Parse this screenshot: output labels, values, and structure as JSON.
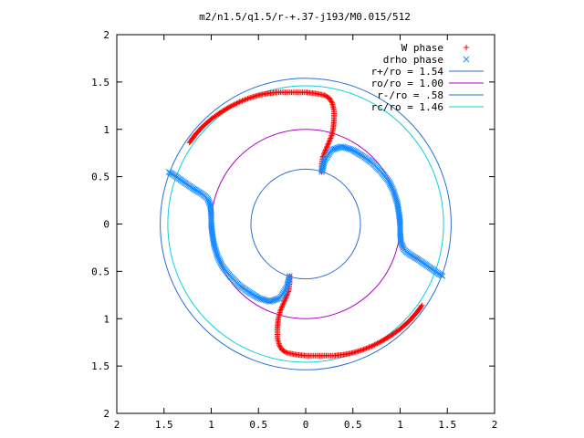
{
  "chart_data": {
    "type": "scatter",
    "title": "m2/n1.5/q1.5/r-+.37-j193/M0.015/512",
    "xlabel": "",
    "ylabel": "",
    "xlim": [
      -2,
      2
    ],
    "ylim": [
      -2,
      2
    ],
    "x_tick_labels": [
      "2",
      "1.5",
      "1",
      "0.5",
      "0",
      "0.5",
      "1",
      "1.5",
      "2"
    ],
    "y_tick_labels": [
      "2",
      "1.5",
      "1",
      "0.5",
      "0",
      "0.5",
      "1",
      "1.5",
      "2"
    ],
    "grid": false,
    "legend_position": "top-right",
    "circles": [
      {
        "label": "r+/ro = 1.54",
        "radius": 1.54,
        "color": "#2a6fd6"
      },
      {
        "label": "ro/ro = 1.00",
        "radius": 1.0,
        "color": "#b000c8"
      },
      {
        "label": "r-/ro = .58",
        "radius": 0.58,
        "color": "#2a6fd6"
      },
      {
        "label": "rc/ro = 1.46",
        "radius": 1.46,
        "color": "#10d0d8"
      }
    ],
    "series": [
      {
        "name": "W phase",
        "marker": "+",
        "color": "#ff0000",
        "arms": [
          {
            "points": [
              [
                -1.23,
                0.86
              ],
              [
                -1.18,
                0.93
              ],
              [
                -1.1,
                1.02
              ],
              [
                -1.0,
                1.11
              ],
              [
                -0.9,
                1.18
              ],
              [
                -0.8,
                1.24
              ],
              [
                -0.7,
                1.29
              ],
              [
                -0.6,
                1.33
              ],
              [
                -0.5,
                1.36
              ],
              [
                -0.4,
                1.38
              ],
              [
                -0.3,
                1.39
              ],
              [
                -0.2,
                1.39
              ],
              [
                -0.1,
                1.39
              ],
              [
                0.0,
                1.39
              ],
              [
                0.1,
                1.38
              ],
              [
                0.2,
                1.36
              ],
              [
                0.25,
                1.33
              ],
              [
                0.28,
                1.28
              ],
              [
                0.3,
                1.2
              ],
              [
                0.3,
                1.1
              ],
              [
                0.29,
                1.0
              ],
              [
                0.27,
                0.92
              ],
              [
                0.24,
                0.85
              ],
              [
                0.21,
                0.78
              ],
              [
                0.18,
                0.7
              ],
              [
                0.17,
                0.62
              ],
              [
                0.17,
                0.55
              ]
            ]
          },
          {
            "points": [
              [
                1.23,
                -0.86
              ],
              [
                1.18,
                -0.93
              ],
              [
                1.1,
                -1.02
              ],
              [
                1.0,
                -1.11
              ],
              [
                0.9,
                -1.18
              ],
              [
                0.8,
                -1.24
              ],
              [
                0.7,
                -1.29
              ],
              [
                0.6,
                -1.33
              ],
              [
                0.5,
                -1.36
              ],
              [
                0.4,
                -1.38
              ],
              [
                0.3,
                -1.39
              ],
              [
                0.2,
                -1.39
              ],
              [
                0.1,
                -1.39
              ],
              [
                0.0,
                -1.39
              ],
              [
                -0.1,
                -1.38
              ],
              [
                -0.2,
                -1.36
              ],
              [
                -0.25,
                -1.33
              ],
              [
                -0.28,
                -1.28
              ],
              [
                -0.3,
                -1.2
              ],
              [
                -0.3,
                -1.1
              ],
              [
                -0.29,
                -1.0
              ],
              [
                -0.27,
                -0.92
              ],
              [
                -0.24,
                -0.85
              ],
              [
                -0.21,
                -0.78
              ],
              [
                -0.18,
                -0.7
              ],
              [
                -0.17,
                -0.62
              ],
              [
                -0.17,
                -0.55
              ]
            ]
          }
        ]
      },
      {
        "name": "drho phase",
        "marker": "x",
        "color": "#1a8cff",
        "arms": [
          {
            "points": [
              [
                0.17,
                0.55
              ],
              [
                0.2,
                0.67
              ],
              [
                0.27,
                0.78
              ],
              [
                0.38,
                0.82
              ],
              [
                0.5,
                0.78
              ],
              [
                0.6,
                0.72
              ],
              [
                0.7,
                0.65
              ],
              [
                0.8,
                0.55
              ],
              [
                0.88,
                0.45
              ],
              [
                0.93,
                0.35
              ],
              [
                0.97,
                0.22
              ],
              [
                0.99,
                0.1
              ],
              [
                1.0,
                0.0
              ],
              [
                1.0,
                -0.1
              ],
              [
                1.01,
                -0.2
              ],
              [
                1.04,
                -0.27
              ],
              [
                1.1,
                -0.32
              ],
              [
                1.2,
                -0.38
              ],
              [
                1.3,
                -0.45
              ],
              [
                1.4,
                -0.52
              ],
              [
                1.45,
                -0.55
              ]
            ]
          },
          {
            "points": [
              [
                -0.17,
                -0.55
              ],
              [
                -0.2,
                -0.67
              ],
              [
                -0.27,
                -0.78
              ],
              [
                -0.38,
                -0.82
              ],
              [
                -0.5,
                -0.78
              ],
              [
                -0.6,
                -0.72
              ],
              [
                -0.7,
                -0.65
              ],
              [
                -0.8,
                -0.55
              ],
              [
                -0.88,
                -0.45
              ],
              [
                -0.93,
                -0.35
              ],
              [
                -0.97,
                -0.22
              ],
              [
                -0.99,
                -0.1
              ],
              [
                -1.0,
                0.0
              ],
              [
                -1.0,
                0.1
              ],
              [
                -1.01,
                0.2
              ],
              [
                -1.04,
                0.27
              ],
              [
                -1.1,
                0.32
              ],
              [
                -1.2,
                0.38
              ],
              [
                -1.3,
                0.45
              ],
              [
                -1.4,
                0.52
              ],
              [
                -1.45,
                0.55
              ]
            ]
          }
        ]
      }
    ]
  }
}
